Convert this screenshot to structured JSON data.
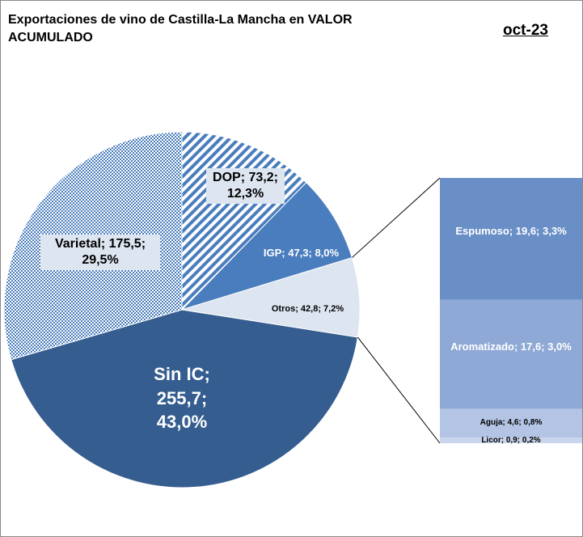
{
  "title": "Exportaciones de vino de Castilla-La Mancha en VALOR ACUMULADO",
  "period": "oct-23",
  "chart_data": {
    "type": "pie",
    "values": [
      73.2,
      47.3,
      42.8,
      255.7,
      175.5
    ],
    "value_labels": [
      "DOP; 73,2; 12,3%",
      "IGP; 47,3; 8,0%",
      "Otros; 42,8; 7,2%",
      "Sin IC; 255,7; 43,0%",
      "Varietal; 175,5; 29,5%"
    ],
    "colors": [
      "#4a7dbd",
      "#4a7dbd",
      "#dde5f1",
      "#355d8f",
      "#4a7dbd"
    ],
    "fills": [
      "stripes",
      "solid",
      "solid",
      "solid",
      "checker"
    ],
    "breakdown": {
      "type": "bar",
      "values": [
        19.6,
        17.6,
        4.6,
        0.9
      ],
      "value_labels": [
        "Espumoso; 19,6; 3,3%",
        "Aromatizado; 17,6; 3,0%",
        "Aguja; 4,6; 0,8%",
        "Licor; 0,9; 0,2%"
      ],
      "colors": [
        "#6a8fc7",
        "#8fa9d6",
        "#b3c4e4",
        "#c9d5ec"
      ]
    }
  }
}
